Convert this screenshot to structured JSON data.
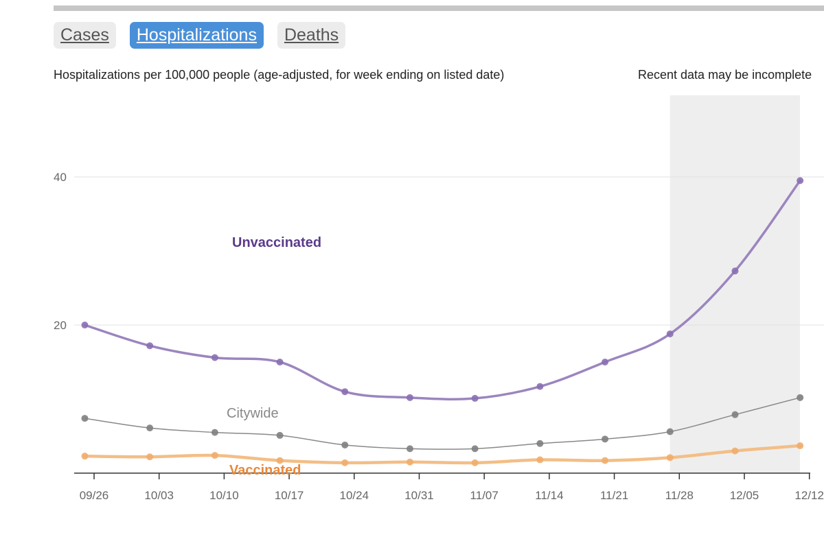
{
  "tabs": [
    {
      "label": "Cases",
      "active": false
    },
    {
      "label": "Hospitalizations",
      "active": true
    },
    {
      "label": "Deaths",
      "active": false
    }
  ],
  "subtitle": "Hospitalizations per 100,000 people (age-adjusted, for week ending on listed date)",
  "note": "Recent data may be incomplete",
  "colors": {
    "unvaccinated": "#9b85be",
    "unvaccinated_label": "#5b3a8a",
    "citywide": "#888888",
    "vaccinated": "#f3be86",
    "vaccinated_label": "#e8883a",
    "tab_active": "#4a90d9",
    "shade": "#eeeeee"
  },
  "chart_data": {
    "type": "line",
    "title": "",
    "xlabel": "",
    "ylabel": "",
    "x_ticks": [
      "09/26",
      "10/03",
      "10/10",
      "10/17",
      "10/24",
      "10/31",
      "11/07",
      "11/14",
      "11/21",
      "11/28",
      "12/05",
      "12/12"
    ],
    "y_ticks": [
      20,
      40
    ],
    "ylim": [
      0,
      50
    ],
    "grid": true,
    "incomplete_region_start": "11/27",
    "dates": [
      "09/25",
      "10/02",
      "10/09",
      "10/16",
      "10/23",
      "10/30",
      "11/06",
      "11/13",
      "11/20",
      "11/27",
      "12/04",
      "12/11"
    ],
    "series": [
      {
        "name": "Unvaccinated",
        "color": "#9b85be",
        "values": [
          20.0,
          17.2,
          15.6,
          15.0,
          11.0,
          10.2,
          10.1,
          11.7,
          15.0,
          18.8,
          27.3,
          39.5
        ]
      },
      {
        "name": "Citywide",
        "color": "#888888",
        "values": [
          7.4,
          6.1,
          5.5,
          5.1,
          3.8,
          3.3,
          3.3,
          4.0,
          4.6,
          5.6,
          7.9,
          10.2
        ]
      },
      {
        "name": "Vaccinated",
        "color": "#f3be86",
        "values": [
          2.3,
          2.2,
          2.4,
          1.7,
          1.4,
          1.5,
          1.4,
          1.8,
          1.7,
          2.1,
          3.0,
          3.7
        ]
      }
    ]
  }
}
